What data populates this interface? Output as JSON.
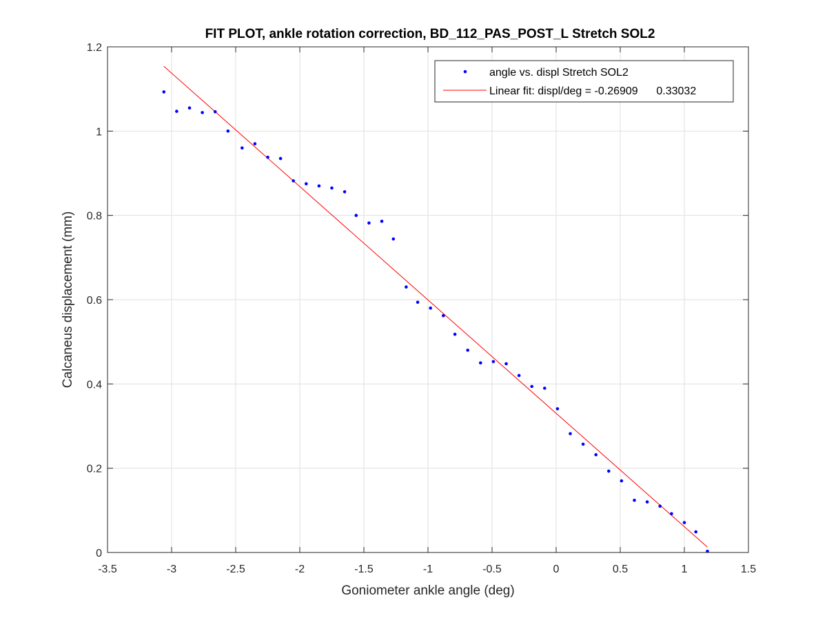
{
  "chart_data": {
    "type": "scatter",
    "title": "FIT PLOT, ankle rotation correction, BD_112_PAS_POST_L Stretch SOL2",
    "xlabel": "Goniometer ankle angle (deg)",
    "ylabel": "Calcaneus displacement (mm)",
    "xlim": [
      -3.5,
      1.5
    ],
    "ylim": [
      0,
      1.2
    ],
    "xticks": [
      -3.5,
      -3,
      -2.5,
      -2,
      -1.5,
      -1,
      -0.5,
      0,
      0.5,
      1,
      1.5
    ],
    "xtick_labels": [
      "-3.5",
      "-3",
      "-2.5",
      "-2",
      "-1.5",
      "-1",
      "-0.5",
      "0",
      "0.5",
      "1",
      "1.5"
    ],
    "yticks": [
      0,
      0.2,
      0.4,
      0.6,
      0.8,
      1,
      1.2
    ],
    "ytick_labels": [
      "0",
      "0.2",
      "0.4",
      "0.6",
      "0.8",
      "1",
      "1.2"
    ],
    "grid": true,
    "legend_position": "top-right",
    "series": [
      {
        "name": "angle vs. displ Stretch SOL2",
        "kind": "points",
        "color": "#0000ff",
        "x": [
          -3.06,
          -2.96,
          -2.86,
          -2.76,
          -2.66,
          -2.56,
          -2.45,
          -2.35,
          -2.25,
          -2.15,
          -2.05,
          -1.95,
          -1.85,
          -1.75,
          -1.65,
          -1.56,
          -1.46,
          -1.36,
          -1.27,
          -1.17,
          -1.08,
          -0.98,
          -0.88,
          -0.79,
          -0.69,
          -0.59,
          -0.49,
          -0.39,
          -0.29,
          -0.19,
          -0.09,
          0.01,
          0.11,
          0.21,
          0.31,
          0.41,
          0.51,
          0.61,
          0.71,
          0.81,
          0.9,
          1.0,
          1.09,
          1.18
        ],
        "y": [
          1.093,
          1.047,
          1.055,
          1.044,
          1.046,
          1.0,
          0.96,
          0.97,
          0.938,
          0.935,
          0.882,
          0.875,
          0.87,
          0.865,
          0.856,
          0.8,
          0.782,
          0.786,
          0.744,
          0.63,
          0.594,
          0.58,
          0.562,
          0.518,
          0.48,
          0.45,
          0.453,
          0.448,
          0.42,
          0.394,
          0.39,
          0.341,
          0.282,
          0.257,
          0.232,
          0.193,
          0.17,
          0.124,
          0.12,
          0.11,
          0.092,
          0.071,
          0.049,
          0.003
        ]
      },
      {
        "name": "Linear fit: displ/deg = -0.26909      0.33032",
        "kind": "line",
        "color": "#ff0000",
        "x": [
          -3.06,
          1.18
        ],
        "y": [
          1.1537,
          0.0128
        ]
      }
    ]
  }
}
